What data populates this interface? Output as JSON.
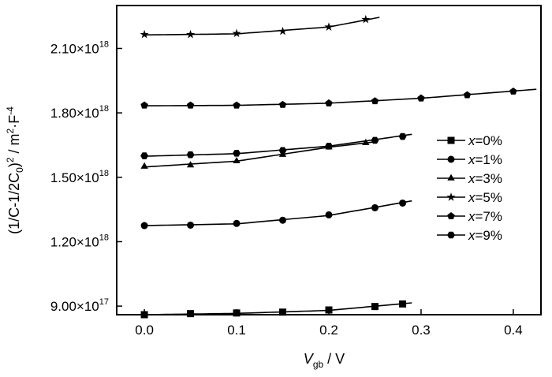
{
  "chart_data": {
    "type": "line",
    "xlabel": {
      "symbol": "V",
      "sub": "gb",
      "unit": " / V"
    },
    "ylabel": {
      "text": "(1/C-1/2C",
      "sub": "0",
      "mid": ")",
      "sup1": "2",
      "unit": " / m",
      "sup2": "2",
      "dot": "·F",
      "sup3": "-4"
    },
    "xlim": [
      -0.03,
      0.43
    ],
    "ylim": [
      8.6e+17,
      2.3e+18
    ],
    "x_ticks": [
      0.0,
      0.1,
      0.2,
      0.3,
      0.4
    ],
    "x_tick_labels": [
      "0.0",
      "0.1",
      "0.2",
      "0.3",
      "0.4"
    ],
    "y_ticks": [
      9e+17,
      1.2e+18,
      1.5e+18,
      1.8e+18,
      2.1e+18
    ],
    "y_tick_labels": [
      {
        "mant": "9.00×10",
        "exp": "17"
      },
      {
        "mant": "1.20×10",
        "exp": "18"
      },
      {
        "mant": "1.50×10",
        "exp": "18"
      },
      {
        "mant": "1.80×10",
        "exp": "18"
      },
      {
        "mant": "2.10×10",
        "exp": "18"
      }
    ],
    "legend_position": "right",
    "series": [
      {
        "name": "x=0%",
        "var": "x",
        "label": "=0%",
        "marker": "square",
        "x": [
          0.0,
          0.05,
          0.1,
          0.15,
          0.2,
          0.25,
          0.28
        ],
        "y": [
          8.6e+17,
          8.65e+17,
          8.68e+17,
          8.72e+17,
          8.82e+17,
          8.98e+17,
          9.1e+17
        ],
        "fit_x": [
          0.0,
          0.1,
          0.2,
          0.29
        ],
        "fit_y": [
          8.6e+17,
          8.66e+17,
          8.8e+17,
          9.15e+17
        ]
      },
      {
        "name": "x=1%",
        "var": "x",
        "label": "=1%",
        "marker": "circle",
        "x": [
          0.0,
          0.05,
          0.1,
          0.15,
          0.2,
          0.25,
          0.28
        ],
        "y": [
          1.275e+18,
          1.277e+18,
          1.285e+18,
          1.3e+18,
          1.325e+18,
          1.358e+18,
          1.38e+18
        ],
        "fit_x": [
          0.0,
          0.1,
          0.2,
          0.29
        ],
        "fit_y": [
          1.275e+18,
          1.283e+18,
          1.322e+18,
          1.39e+18
        ]
      },
      {
        "name": "x=3%",
        "var": "x",
        "label": "=3%",
        "marker": "triangle",
        "x": [
          0.0,
          0.05,
          0.1,
          0.15,
          0.2,
          0.24
        ],
        "y": [
          1.55e+18,
          1.556e+18,
          1.575e+18,
          1.605e+18,
          1.64e+18,
          1.66e+18
        ],
        "fit_x": [
          0.0,
          0.1,
          0.2,
          0.25
        ],
        "fit_y": [
          1.548e+18,
          1.575e+18,
          1.64e+18,
          1.665e+18
        ]
      },
      {
        "name": "x=5%",
        "var": "x",
        "label": "=5%",
        "marker": "star",
        "x": [
          0.0,
          0.05,
          0.1,
          0.15,
          0.2,
          0.24
        ],
        "y": [
          2.165e+18,
          2.165e+18,
          2.17e+18,
          2.18e+18,
          2.2e+18,
          2.235e+18
        ],
        "fit_x": [
          0.0,
          0.1,
          0.2,
          0.255
        ],
        "fit_y": [
          2.163e+18,
          2.168e+18,
          2.2e+18,
          2.245e+18
        ]
      },
      {
        "name": "x=7%",
        "var": "x",
        "label": "=7%",
        "marker": "pentagon",
        "x": [
          0.0,
          0.05,
          0.1,
          0.15,
          0.2,
          0.25,
          0.3,
          0.35,
          0.4
        ],
        "y": [
          1.835e+18,
          1.835e+18,
          1.835e+18,
          1.838e+18,
          1.845e+18,
          1.855e+18,
          1.868e+18,
          1.883e+18,
          1.9e+18
        ],
        "fit_x": [
          0.0,
          0.1,
          0.2,
          0.3,
          0.425
        ],
        "fit_y": [
          1.833e+18,
          1.835e+18,
          1.845e+18,
          1.868e+18,
          1.91e+18
        ]
      },
      {
        "name": "x=9%",
        "var": "x",
        "label": "=9%",
        "marker": "hexagon",
        "x": [
          0.0,
          0.05,
          0.1,
          0.15,
          0.2,
          0.25,
          0.28
        ],
        "y": [
          1.6e+18,
          1.605e+18,
          1.612e+18,
          1.625e+18,
          1.645e+18,
          1.672e+18,
          1.69e+18
        ],
        "fit_x": [
          0.0,
          0.1,
          0.2,
          0.29
        ],
        "fit_y": [
          1.598e+18,
          1.61e+18,
          1.645e+18,
          1.7e+18
        ]
      }
    ]
  }
}
